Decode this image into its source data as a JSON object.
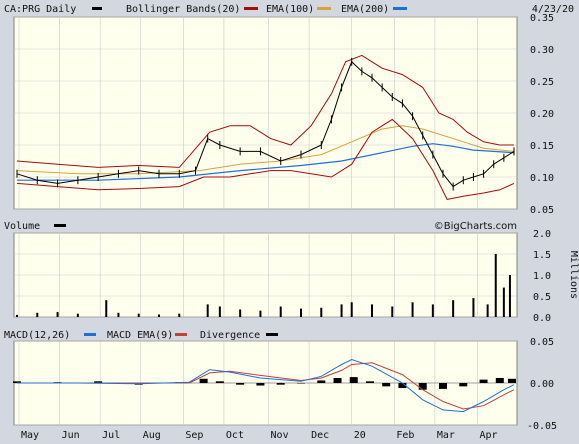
{
  "colors": {
    "background": "#d2d7e0",
    "panel": "#ffffee",
    "price": "#000000",
    "bollinger": "#a30d0d",
    "ema100": "#d6a33a",
    "ema200": "#1f6fd6",
    "volume": "#000000",
    "macd": "#1f6fd6",
    "macd_ema": "#c0413a",
    "divergence": "#000000",
    "grid": "#c9c9c9"
  },
  "header": {
    "symbol_label": "CA:PRG Daily",
    "bollinger_label": "Bollinger Bands(20)",
    "ema100_label": "EMA(100)",
    "ema200_label": "EMA(200)",
    "date": "4/23/20"
  },
  "volume_header": {
    "label": "Volume",
    "watermark": "©BigCharts.com"
  },
  "macd_header": {
    "macd_label": "MACD(12,26)",
    "ema_label": "MACD EMA(9)",
    "div_label": "Divergence"
  },
  "chart_data": [
    {
      "type": "line",
      "title": "CA:PRG Daily",
      "ylim": [
        0.05,
        0.35
      ],
      "yticks": [
        "0.35",
        "0.30",
        "0.25",
        "0.20",
        "0.15",
        "0.10",
        "0.05"
      ],
      "ytick_values": [
        0.35,
        0.3,
        0.25,
        0.2,
        0.15,
        0.1,
        0.05
      ],
      "xticks": [
        "May",
        "Jun",
        "Jul",
        "Aug",
        "Sep",
        "Oct",
        "Nov",
        "Dec",
        "20",
        "Feb",
        "Mar",
        "Apr"
      ],
      "xtick_positions": [
        1,
        21,
        41,
        61,
        82,
        102,
        124,
        144,
        165,
        186,
        206,
        227
      ],
      "x_range": [
        0,
        245
      ],
      "grid": true,
      "legend": "top",
      "series": [
        {
          "name": "CA:PRG Daily",
          "x": [
            0,
            10,
            20,
            30,
            40,
            50,
            60,
            70,
            80,
            88,
            94,
            100,
            110,
            120,
            130,
            140,
            150,
            155,
            160,
            165,
            170,
            175,
            180,
            185,
            190,
            195,
            200,
            205,
            210,
            215,
            220,
            225,
            230,
            235,
            240,
            245
          ],
          "values": [
            0.105,
            0.095,
            0.09,
            0.095,
            0.1,
            0.105,
            0.11,
            0.105,
            0.105,
            0.11,
            0.16,
            0.15,
            0.14,
            0.14,
            0.125,
            0.135,
            0.15,
            0.19,
            0.24,
            0.28,
            0.265,
            0.255,
            0.24,
            0.225,
            0.215,
            0.195,
            0.165,
            0.135,
            0.105,
            0.085,
            0.095,
            0.1,
            0.105,
            0.12,
            0.13,
            0.14
          ]
        },
        {
          "name": "Bollinger Bands(20) upper",
          "x": [
            0,
            20,
            40,
            60,
            80,
            95,
            105,
            115,
            125,
            135,
            145,
            155,
            162,
            170,
            180,
            190,
            200,
            208,
            215,
            222,
            230,
            238,
            245
          ],
          "values": [
            0.125,
            0.12,
            0.115,
            0.118,
            0.115,
            0.17,
            0.18,
            0.18,
            0.16,
            0.15,
            0.18,
            0.23,
            0.28,
            0.29,
            0.27,
            0.26,
            0.24,
            0.2,
            0.19,
            0.17,
            0.155,
            0.15,
            0.15
          ]
        },
        {
          "name": "Bollinger Bands(20) lower",
          "x": [
            0,
            20,
            40,
            60,
            80,
            92,
            105,
            115,
            125,
            135,
            145,
            155,
            165,
            175,
            185,
            195,
            205,
            212,
            220,
            230,
            238,
            245
          ],
          "values": [
            0.09,
            0.085,
            0.08,
            0.082,
            0.085,
            0.1,
            0.1,
            0.105,
            0.11,
            0.11,
            0.105,
            0.1,
            0.12,
            0.17,
            0.19,
            0.16,
            0.11,
            0.065,
            0.07,
            0.075,
            0.08,
            0.09
          ]
        },
        {
          "name": "EMA(100)",
          "x": [
            0,
            30,
            60,
            90,
            110,
            130,
            150,
            165,
            180,
            190,
            200,
            210,
            220,
            230,
            245
          ],
          "values": [
            0.11,
            0.105,
            0.105,
            0.11,
            0.12,
            0.125,
            0.135,
            0.155,
            0.175,
            0.18,
            0.175,
            0.165,
            0.155,
            0.145,
            0.14
          ]
        },
        {
          "name": "EMA(200)",
          "x": [
            0,
            40,
            80,
            110,
            140,
            160,
            180,
            195,
            205,
            215,
            225,
            235,
            245
          ],
          "values": [
            0.095,
            0.095,
            0.1,
            0.11,
            0.118,
            0.125,
            0.138,
            0.148,
            0.152,
            0.148,
            0.142,
            0.14,
            0.138
          ]
        }
      ]
    },
    {
      "type": "bar",
      "title": "Volume",
      "ylabel": "Millions",
      "ylim": [
        0,
        2.0
      ],
      "yticks": [
        "2.0",
        "1.5",
        "1.0",
        "0.5",
        "0.0"
      ],
      "ytick_values": [
        2.0,
        1.5,
        1.0,
        0.5,
        0.0
      ],
      "x": [
        0,
        10,
        20,
        30,
        44,
        50,
        60,
        70,
        80,
        94,
        100,
        110,
        120,
        130,
        140,
        150,
        160,
        165,
        175,
        185,
        195,
        205,
        215,
        225,
        232,
        236,
        240,
        243
      ],
      "values": [
        0.05,
        0.1,
        0.12,
        0.08,
        0.4,
        0.1,
        0.08,
        0.06,
        0.08,
        0.3,
        0.25,
        0.18,
        0.15,
        0.25,
        0.2,
        0.22,
        0.3,
        0.35,
        0.3,
        0.25,
        0.35,
        0.3,
        0.4,
        0.45,
        0.3,
        1.5,
        0.7,
        1.0
      ]
    },
    {
      "type": "line",
      "title": "MACD(12,26)",
      "ylim": [
        -0.05,
        0.05
      ],
      "yticks": [
        "0.05",
        "0.00",
        "-0.05"
      ],
      "ytick_values": [
        0.05,
        0.0,
        -0.05
      ],
      "series": [
        {
          "name": "MACD(12,26)",
          "x": [
            0,
            30,
            60,
            85,
            95,
            105,
            120,
            140,
            150,
            160,
            165,
            175,
            190,
            200,
            210,
            220,
            230,
            240,
            245
          ],
          "values": [
            0.0,
            0.0,
            -0.001,
            0.001,
            0.016,
            0.013,
            0.006,
            0.002,
            0.008,
            0.022,
            0.028,
            0.02,
            0.0,
            -0.02,
            -0.032,
            -0.034,
            -0.022,
            -0.008,
            -0.002
          ]
        },
        {
          "name": "MACD EMA(9)",
          "x": [
            0,
            30,
            60,
            85,
            95,
            105,
            120,
            140,
            150,
            160,
            165,
            175,
            190,
            200,
            210,
            220,
            230,
            240,
            245
          ],
          "values": [
            0.0,
            0.0,
            0.0,
            0.0,
            0.012,
            0.014,
            0.009,
            0.003,
            0.006,
            0.015,
            0.022,
            0.024,
            0.01,
            -0.008,
            -0.022,
            -0.031,
            -0.027,
            -0.014,
            -0.008
          ]
        },
        {
          "name": "Divergence",
          "x": [
            0,
            20,
            40,
            60,
            80,
            92,
            100,
            110,
            120,
            130,
            140,
            150,
            158,
            166,
            174,
            182,
            190,
            200,
            210,
            220,
            230,
            238,
            244
          ],
          "values": [
            0.002,
            0.001,
            0.002,
            -0.002,
            0.001,
            0.005,
            0.002,
            -0.002,
            -0.003,
            -0.002,
            0.0,
            0.003,
            0.006,
            0.007,
            0.002,
            -0.004,
            -0.006,
            -0.008,
            -0.007,
            -0.004,
            0.004,
            0.006,
            0.005
          ]
        }
      ]
    }
  ]
}
